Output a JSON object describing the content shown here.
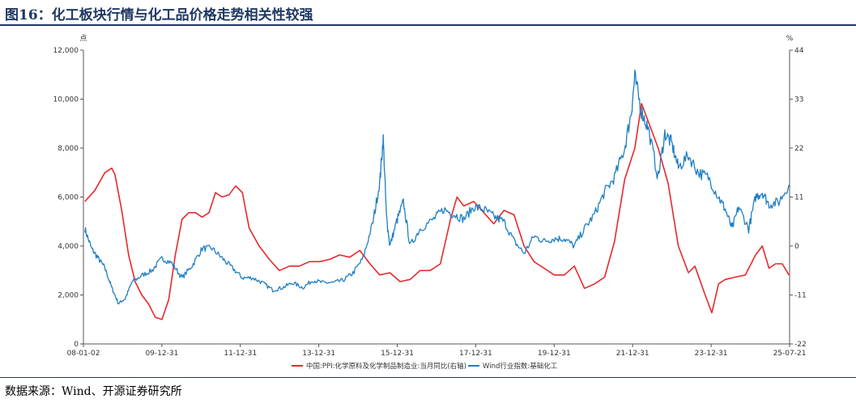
{
  "header": {
    "title": "图16：化工板块行情与化工品价格走势相关性较强"
  },
  "footer": {
    "source": "数据来源：Wind、开源证券研究所"
  },
  "chart_data": {
    "type": "line",
    "x_ticks": [
      "08-01-02",
      "09-12-31",
      "11-12-31",
      "13-12-31",
      "15-12-31",
      "17-12-31",
      "19-12-31",
      "21-12-31",
      "23-12-31",
      "25-07-21"
    ],
    "x_range": [
      "2008-01-02",
      "2025-07-21"
    ],
    "y_left": {
      "unit": "点",
      "min": 0,
      "max": 12000,
      "ticks": [
        "0",
        "2,000",
        "4,000",
        "6,000",
        "8,000",
        "10,000",
        "12,000"
      ]
    },
    "y_right": {
      "unit": "%",
      "min": -22,
      "max": 44,
      "ticks": [
        "-22",
        "-11",
        "0",
        "11",
        "22",
        "33",
        "44"
      ]
    },
    "legend_position": "bottom",
    "series": [
      {
        "name": "中国:PPI:化学原料及化学制品制造业:当月同比(右轴)",
        "axis": "right",
        "color": "#e8282b",
        "points": [
          [
            "2008-01",
            10
          ],
          [
            "2008-04",
            12.5
          ],
          [
            "2008-07",
            16.5
          ],
          [
            "2008-09",
            17.5
          ],
          [
            "2008-10",
            16
          ],
          [
            "2008-12",
            8
          ],
          [
            "2009-02",
            -2
          ],
          [
            "2009-04",
            -8
          ],
          [
            "2009-06",
            -11
          ],
          [
            "2009-08",
            -13
          ],
          [
            "2009-10",
            -16
          ],
          [
            "2009-12",
            -16.5
          ],
          [
            "2010-02",
            -12
          ],
          [
            "2010-04",
            -2
          ],
          [
            "2010-06",
            6
          ],
          [
            "2010-08",
            7.5
          ],
          [
            "2010-10",
            7.5
          ],
          [
            "2010-12",
            6.5
          ],
          [
            "2011-02",
            7.5
          ],
          [
            "2011-04",
            12
          ],
          [
            "2011-06",
            11
          ],
          [
            "2011-08",
            11.5
          ],
          [
            "2011-10",
            13.5
          ],
          [
            "2011-12",
            12
          ],
          [
            "2012-02",
            4
          ],
          [
            "2012-05",
            0
          ],
          [
            "2012-08",
            -3
          ],
          [
            "2012-11",
            -5.5
          ],
          [
            "2013-02",
            -4.5
          ],
          [
            "2013-05",
            -4.5
          ],
          [
            "2013-08",
            -3.5
          ],
          [
            "2013-11",
            -3.5
          ],
          [
            "2014-02",
            -3
          ],
          [
            "2014-05",
            -2
          ],
          [
            "2014-08",
            -2.5
          ],
          [
            "2014-11",
            -1
          ],
          [
            "2015-02",
            -4
          ],
          [
            "2015-05",
            -6.5
          ],
          [
            "2015-08",
            -6
          ],
          [
            "2015-11",
            -8
          ],
          [
            "2016-02",
            -7.5
          ],
          [
            "2016-05",
            -5.5
          ],
          [
            "2016-08",
            -5.5
          ],
          [
            "2016-11",
            -4
          ],
          [
            "2017-02",
            6
          ],
          [
            "2017-04",
            11
          ],
          [
            "2017-06",
            9
          ],
          [
            "2017-09",
            10
          ],
          [
            "2017-12",
            7.5
          ],
          [
            "2018-03",
            5
          ],
          [
            "2018-06",
            8
          ],
          [
            "2018-09",
            7
          ],
          [
            "2018-12",
            0
          ],
          [
            "2019-03",
            -3.5
          ],
          [
            "2019-06",
            -5
          ],
          [
            "2019-09",
            -6.5
          ],
          [
            "2019-12",
            -6.5
          ],
          [
            "2020-03",
            -4.5
          ],
          [
            "2020-06",
            -9.5
          ],
          [
            "2020-09",
            -8.5
          ],
          [
            "2020-12",
            -7
          ],
          [
            "2021-03",
            1
          ],
          [
            "2021-06",
            15
          ],
          [
            "2021-09",
            22
          ],
          [
            "2021-11",
            32
          ],
          [
            "2022-01",
            28
          ],
          [
            "2022-04",
            22
          ],
          [
            "2022-07",
            14
          ],
          [
            "2022-10",
            0
          ],
          [
            "2023-01",
            -6
          ],
          [
            "2023-03",
            -4.5
          ],
          [
            "2023-06",
            -11
          ],
          [
            "2023-08",
            -15
          ],
          [
            "2023-10",
            -8.5
          ],
          [
            "2023-12",
            -7.5
          ],
          [
            "2024-03",
            -7
          ],
          [
            "2024-06",
            -6.5
          ],
          [
            "2024-09",
            -2
          ],
          [
            "2024-11",
            0
          ],
          [
            "2025-01",
            -5
          ],
          [
            "2025-03",
            -4
          ],
          [
            "2025-05",
            -4
          ],
          [
            "2025-07",
            -6.5
          ]
        ]
      },
      {
        "name": "Wind行业指数:基础化工",
        "axis": "left",
        "color": "#1f7fc4",
        "points": [
          [
            "2008-01",
            4700
          ],
          [
            "2008-03",
            3900
          ],
          [
            "2008-05",
            3500
          ],
          [
            "2008-07",
            3100
          ],
          [
            "2008-09",
            2300
          ],
          [
            "2008-11",
            1650
          ],
          [
            "2009-01",
            1850
          ],
          [
            "2009-03",
            2500
          ],
          [
            "2009-06",
            2800
          ],
          [
            "2009-09",
            3000
          ],
          [
            "2009-12",
            3500
          ],
          [
            "2010-03",
            3300
          ],
          [
            "2010-06",
            2700
          ],
          [
            "2010-09",
            3200
          ],
          [
            "2010-12",
            3900
          ],
          [
            "2011-03",
            3900
          ],
          [
            "2011-06",
            3500
          ],
          [
            "2011-09",
            3100
          ],
          [
            "2011-12",
            2700
          ],
          [
            "2012-03",
            2700
          ],
          [
            "2012-06",
            2500
          ],
          [
            "2012-09",
            2200
          ],
          [
            "2012-12",
            2300
          ],
          [
            "2013-03",
            2500
          ],
          [
            "2013-06",
            2300
          ],
          [
            "2013-09",
            2600
          ],
          [
            "2013-12",
            2500
          ],
          [
            "2014-03",
            2500
          ],
          [
            "2014-06",
            2600
          ],
          [
            "2014-09",
            2900
          ],
          [
            "2014-12",
            3500
          ],
          [
            "2015-03",
            5000
          ],
          [
            "2015-05",
            6600
          ],
          [
            "2015-06",
            8400
          ],
          [
            "2015-07",
            5200
          ],
          [
            "2015-08",
            4000
          ],
          [
            "2015-10",
            5000
          ],
          [
            "2015-12",
            5800
          ],
          [
            "2016-02",
            4000
          ],
          [
            "2016-05",
            4700
          ],
          [
            "2016-09",
            5100
          ],
          [
            "2016-12",
            5500
          ],
          [
            "2017-03",
            5300
          ],
          [
            "2017-06",
            5100
          ],
          [
            "2017-09",
            5600
          ],
          [
            "2017-12",
            5500
          ],
          [
            "2018-03",
            5200
          ],
          [
            "2018-06",
            5000
          ],
          [
            "2018-09",
            4200
          ],
          [
            "2018-12",
            3700
          ],
          [
            "2019-03",
            4400
          ],
          [
            "2019-06",
            4200
          ],
          [
            "2019-09",
            4300
          ],
          [
            "2019-12",
            4300
          ],
          [
            "2020-03",
            4000
          ],
          [
            "2020-06",
            4700
          ],
          [
            "2020-09",
            5300
          ],
          [
            "2020-12",
            6200
          ],
          [
            "2021-03",
            6800
          ],
          [
            "2021-06",
            8000
          ],
          [
            "2021-08",
            9500
          ],
          [
            "2021-09",
            10900
          ],
          [
            "2021-11",
            9500
          ],
          [
            "2022-01",
            8800
          ],
          [
            "2022-04",
            6800
          ],
          [
            "2022-06",
            8600
          ],
          [
            "2022-08",
            8200
          ],
          [
            "2022-10",
            7200
          ],
          [
            "2023-01",
            7700
          ],
          [
            "2023-04",
            7000
          ],
          [
            "2023-07",
            6800
          ],
          [
            "2023-10",
            6000
          ],
          [
            "2023-12",
            5500
          ],
          [
            "2024-02",
            4700
          ],
          [
            "2024-04",
            5600
          ],
          [
            "2024-07",
            4700
          ],
          [
            "2024-09",
            6000
          ],
          [
            "2024-11",
            6200
          ],
          [
            "2025-01",
            5700
          ],
          [
            "2025-04",
            5800
          ],
          [
            "2025-07",
            6500
          ]
        ]
      }
    ]
  }
}
